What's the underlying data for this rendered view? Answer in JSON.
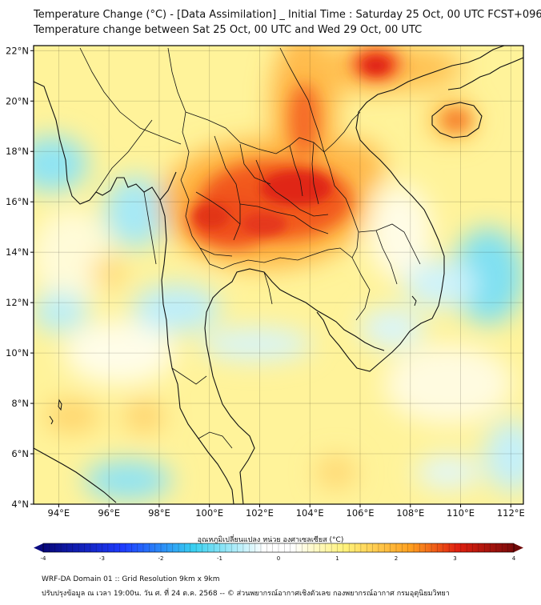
{
  "header": {
    "title_line1": "Temperature Change (°C) - [Data Assimilation] _ Initial Time : Saturday 25 Oct, 00 UTC FCST+096",
    "title_line2": "Temperature change between Sat 25 Oct, 00 UTC and Wed 29 Oct, 00 UTC"
  },
  "map": {
    "lat_labels": [
      "22°N",
      "20°N",
      "18°N",
      "16°N",
      "14°N",
      "12°N",
      "10°N",
      "8°N",
      "6°N",
      "4°N"
    ],
    "lon_labels": [
      "94°E",
      "96°E",
      "98°E",
      "100°E",
      "102°E",
      "104°E",
      "106°E",
      "108°E",
      "110°E",
      "112°E"
    ],
    "lon_range": [
      93,
      112.5
    ],
    "lat_range": [
      4,
      22.2
    ],
    "grid": true
  },
  "colorbar": {
    "title": "อุณหภูมิเปลี่ยนแปลง หน่วย องศาเซลเซียส (°C)",
    "min": -4,
    "max": 4,
    "tick_labels": [
      "-4",
      "-3",
      "-2",
      "-1",
      "0",
      "1",
      "2",
      "3",
      "4"
    ],
    "extend": "both",
    "colors": {
      "dark_blue": "#08087a",
      "blue": "#1e3cff",
      "cyan": "#38d0f0",
      "white": "#ffffff",
      "yellow": "#fff27a",
      "orange": "#ffa020",
      "red": "#e02010",
      "dark_red": "#7a0a0a"
    }
  },
  "footer": {
    "line1": "WRF-DA Domain 01 :: Grid Resolution 9km x 9km",
    "line2": "ปรับปรุงข้อมูล ณ เวลา 19:00น. วัน ศ. ที่ 24 ต.ค. 2568 -- © ส่วนพยากรณ์อากาศเชิงตัวเลข กองพยากรณ์อากาศ กรมอุตุนิยมวิทยา"
  }
}
